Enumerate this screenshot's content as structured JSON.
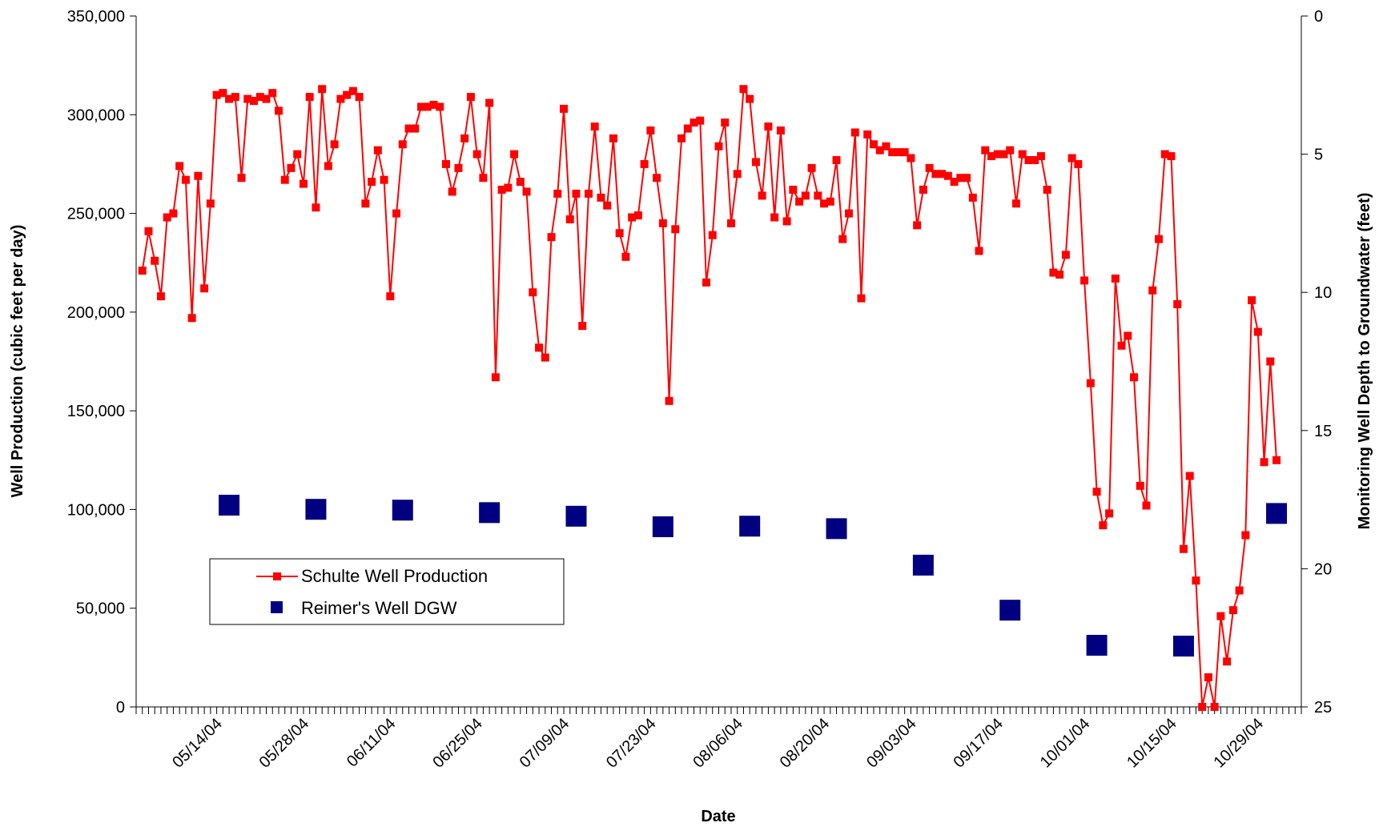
{
  "chart_data": {
    "type": "line",
    "title": "",
    "xlabel": "Date",
    "ylabel": "Well Production (cubic feet per day)",
    "y2label": "Monitoring Well Depth to Groundwater (feet)",
    "x_axis_type": "date",
    "xlim": [
      "2004-04-30",
      "2004-11-04"
    ],
    "ylim": [
      0,
      350000
    ],
    "y2lim": [
      0,
      25
    ],
    "y2_inverted": true,
    "grid": false,
    "legend_position": "lower-left",
    "y_ticks": [
      0,
      50000,
      100000,
      150000,
      200000,
      250000,
      300000,
      350000
    ],
    "y_tick_labels": [
      "0",
      "50,000",
      "100,000",
      "150,000",
      "200,000",
      "250,000",
      "300,000",
      "350,000"
    ],
    "y2_ticks": [
      0,
      5,
      10,
      15,
      20,
      25
    ],
    "y2_tick_labels": [
      "0",
      "5",
      "10",
      "15",
      "20",
      "25"
    ],
    "x_ticks": [
      "2004-05-14",
      "2004-05-28",
      "2004-06-11",
      "2004-06-25",
      "2004-07-09",
      "2004-07-23",
      "2004-08-06",
      "2004-08-20",
      "2004-09-03",
      "2004-09-17",
      "2004-10-01",
      "2004-10-15",
      "2004-10-29"
    ],
    "x_tick_labels": [
      "05/14/04",
      "05/28/04",
      "06/11/04",
      "06/25/04",
      "07/09/04",
      "07/23/04",
      "08/06/04",
      "08/20/04",
      "09/03/04",
      "09/17/04",
      "10/01/04",
      "10/15/04",
      "10/29/04"
    ],
    "series": [
      {
        "name": "Schulte Well Production",
        "axis": "left",
        "style": "line-square",
        "color": "#ff0000",
        "start_date": "2004-05-01",
        "values": [
          221000,
          241000,
          226000,
          208000,
          248000,
          250000,
          274000,
          267000,
          197000,
          269000,
          212000,
          255000,
          310000,
          311000,
          308000,
          309000,
          268000,
          308000,
          307000,
          309000,
          308000,
          311000,
          302000,
          267000,
          273000,
          280000,
          265000,
          309000,
          253000,
          313000,
          274000,
          285000,
          308000,
          310000,
          312000,
          309000,
          255000,
          266000,
          282000,
          267000,
          208000,
          250000,
          285000,
          293000,
          293000,
          304000,
          304000,
          305000,
          304000,
          275000,
          261000,
          273000,
          288000,
          309000,
          280000,
          268000,
          306000,
          167000,
          262000,
          263000,
          280000,
          266000,
          261000,
          210000,
          182000,
          177000,
          238000,
          260000,
          303000,
          247000,
          260000,
          193000,
          260000,
          294000,
          258000,
          254000,
          288000,
          240000,
          228000,
          248000,
          249000,
          275000,
          292000,
          268000,
          245000,
          155000,
          242000,
          288000,
          293000,
          296000,
          297000,
          215000,
          239000,
          284000,
          296000,
          245000,
          270000,
          313000,
          308000,
          276000,
          259000,
          294000,
          248000,
          292000,
          246000,
          262000,
          256000,
          259000,
          273000,
          259000,
          255000,
          256000,
          277000,
          237000,
          250000,
          291000,
          207000,
          290000,
          285000,
          282000,
          284000,
          281000,
          281000,
          281000,
          278000,
          244000,
          262000,
          273000,
          270000,
          270000,
          269000,
          266000,
          268000,
          268000,
          258000,
          231000,
          282000,
          279000,
          280000,
          280000,
          282000,
          255000,
          280000,
          277000,
          277000,
          279000,
          262000,
          220000,
          219000,
          229000,
          278000,
          275000,
          216000,
          164000,
          109000,
          92000,
          98000,
          217000,
          183000,
          188000,
          167000,
          112000,
          102000,
          211000,
          237000,
          280000,
          279000,
          204000,
          80000,
          117000,
          64000,
          0,
          15000,
          0,
          46000,
          23000,
          49000,
          59000,
          87000,
          206000,
          190000,
          124000,
          175000,
          125000
        ]
      },
      {
        "name": "Reimer's Well DGW",
        "axis": "right",
        "style": "marker-square",
        "color": "#000080",
        "points": [
          {
            "x": "2004-05-15",
            "y": 17.7
          },
          {
            "x": "2004-05-29",
            "y": 17.85
          },
          {
            "x": "2004-06-12",
            "y": 17.88
          },
          {
            "x": "2004-06-26",
            "y": 17.97
          },
          {
            "x": "2004-07-10",
            "y": 18.1
          },
          {
            "x": "2004-07-24",
            "y": 18.48
          },
          {
            "x": "2004-08-07",
            "y": 18.46
          },
          {
            "x": "2004-08-21",
            "y": 18.55
          },
          {
            "x": "2004-09-04",
            "y": 19.87
          },
          {
            "x": "2004-09-18",
            "y": 21.5
          },
          {
            "x": "2004-10-02",
            "y": 22.77
          },
          {
            "x": "2004-10-16",
            "y": 22.8
          },
          {
            "x": "2004-10-31",
            "y": 18
          }
        ]
      }
    ]
  }
}
